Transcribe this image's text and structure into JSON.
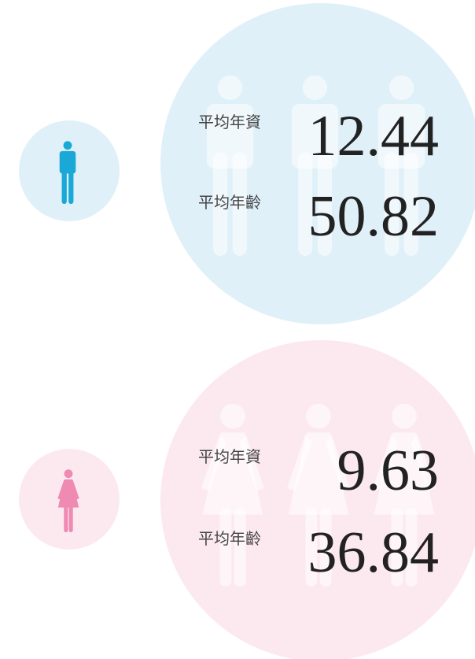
{
  "groups": [
    {
      "stats": [
        {
          "label": "平均年資",
          "value": 12.44
        },
        {
          "label": "平均年齡",
          "value": 50.82
        }
      ]
    },
    {
      "stats": [
        {
          "label": "平均年資",
          "value": 9.63
        },
        {
          "label": "平均年齡",
          "value": 36.84
        }
      ]
    }
  ]
}
